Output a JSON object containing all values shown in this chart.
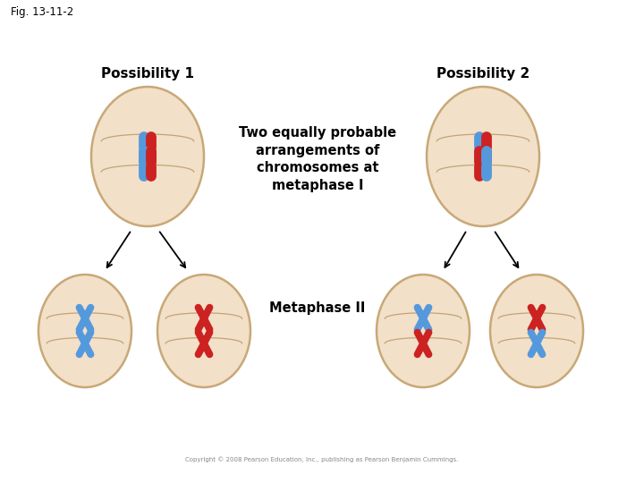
{
  "fig_label": "Fig. 13-11-2",
  "title1": "Possibility 1",
  "title2": "Possibility 2",
  "center_text": "Two equally probable\narrangements of\nchromosomes at\nmetaphase I",
  "bottom_label": "Metaphase II",
  "copyright": "Copyright © 2008 Pearson Education, Inc., publishing as Pearson Benjamin Cummings.",
  "bg_color": "#ffffff",
  "cell_fill": "#f2e0c8",
  "cell_edge": "#c8a878",
  "blue_color": "#5599dd",
  "red_color": "#cc2222"
}
